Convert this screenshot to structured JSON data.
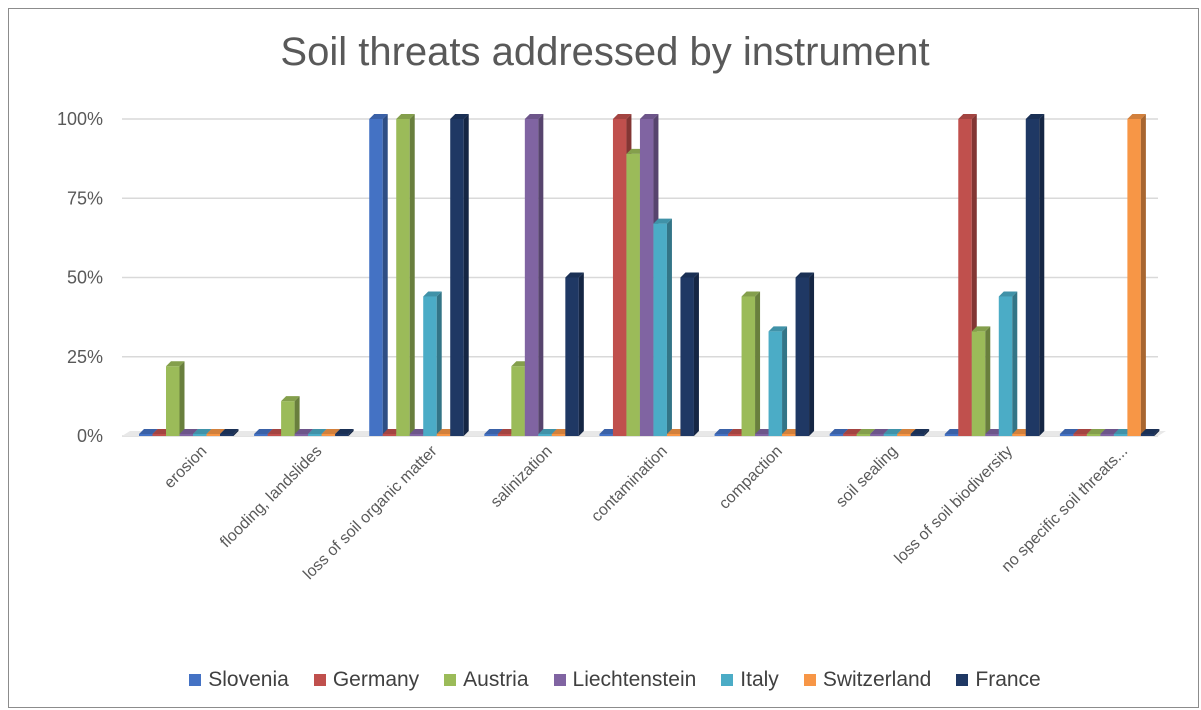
{
  "chart_data": {
    "type": "bar",
    "title": "Soil threats addressed by instrument",
    "xlabel": "",
    "ylabel": "",
    "ylim": [
      0,
      1
    ],
    "yticks": [
      "0%",
      "25%",
      "50%",
      "75%",
      "100%"
    ],
    "grid": true,
    "legend_position": "bottom",
    "categories": [
      "erosion",
      "flooding, landslides",
      "loss of soil organic matter",
      "salinization",
      "contamination",
      "compaction",
      "soil sealing",
      "loss of soil biodiversity",
      "no specific soil threats..."
    ],
    "series": [
      {
        "name": "Slovenia",
        "color": "#4472c4",
        "values": [
          0,
          0,
          1.0,
          0,
          0,
          0,
          0,
          0,
          0
        ]
      },
      {
        "name": "Germany",
        "color": "#c0504d",
        "values": [
          0,
          0,
          0,
          0,
          1.0,
          0,
          0,
          1.0,
          0
        ]
      },
      {
        "name": "Austria",
        "color": "#9bbb59",
        "values": [
          0.22,
          0.11,
          1.0,
          0.22,
          0.89,
          0.44,
          0,
          0.33,
          0
        ]
      },
      {
        "name": "Liechtenstein",
        "color": "#8064a2",
        "values": [
          0,
          0,
          0,
          1.0,
          1.0,
          0,
          0,
          0,
          0
        ]
      },
      {
        "name": "Italy",
        "color": "#4bacc6",
        "values": [
          0,
          0,
          0.44,
          0,
          0.67,
          0.33,
          0,
          0.44,
          0
        ]
      },
      {
        "name": "Switzerland",
        "color": "#f79646",
        "values": [
          0,
          0,
          0,
          0,
          0,
          0,
          0,
          0,
          1.0
        ]
      },
      {
        "name": "France",
        "color": "#1f3864",
        "values": [
          0,
          0,
          1.0,
          0.5,
          0.5,
          0.5,
          0,
          1.0,
          0
        ]
      }
    ]
  }
}
